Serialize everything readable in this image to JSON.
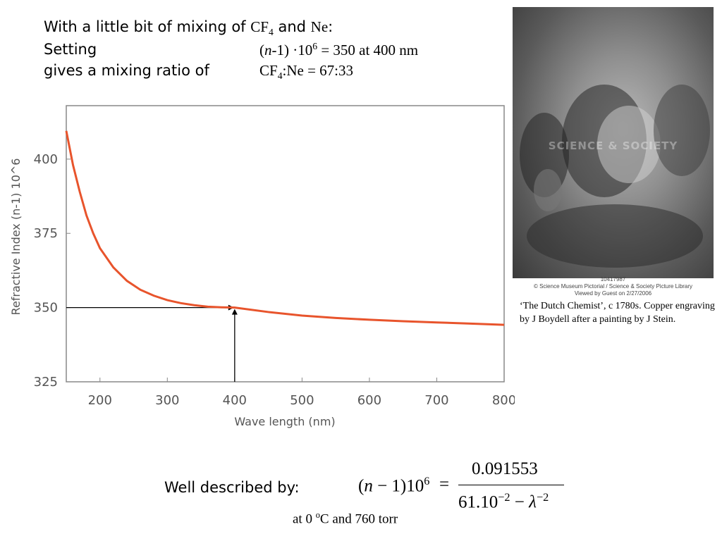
{
  "heading": {
    "line1_prefix": "With a little bit of mixing of",
    "line1_cf": "CF",
    "line1_cf_sub": "4",
    "line1_and": "and",
    "line1_ne": "Ne",
    "line1_colon": ":",
    "line2_left": "Setting",
    "line2_open": "(",
    "line2_n": "n",
    "line2_rest": "-1) ·10",
    "line2_sup": "6",
    "line2_tail": " = 350 at 400 nm",
    "line3_left": "gives a mixing ratio of",
    "line3_cf": "CF",
    "line3_cf_sub": "4",
    "line3_tail": ":Ne = 67:33"
  },
  "chart_data": {
    "type": "line",
    "xlabel": "Wave length (nm)",
    "ylabel": "Refractive Index (n-1) 10^6",
    "xlim": [
      150,
      800
    ],
    "ylim": [
      325,
      418
    ],
    "x_ticks": [
      200,
      300,
      400,
      500,
      600,
      700,
      800
    ],
    "y_ticks": [
      325,
      350,
      375,
      400
    ],
    "grid": false,
    "line_color": "#e8542c",
    "series": [
      {
        "x": [
          150,
          160,
          170,
          180,
          190,
          200,
          220,
          240,
          260,
          280,
          300,
          320,
          340,
          360,
          380,
          400,
          450,
          500,
          550,
          600,
          650,
          700,
          750,
          800
        ],
        "y": [
          409.5,
          398,
          389,
          381,
          375,
          370,
          363.5,
          359,
          356,
          354,
          352.5,
          351.5,
          350.8,
          350.3,
          350.1,
          350,
          348.5,
          347.3,
          346.5,
          345.9,
          345.4,
          345.0,
          344.6,
          344.2
        ]
      }
    ],
    "annotation": {
      "x": 400,
      "y": 350
    }
  },
  "photo": {
    "watermark": "SCIENCE & SOCIETY",
    "credit_line1": "10417987",
    "credit_line2": "© Science Museum Pictorial / Science & Society Picture Library",
    "credit_line3": "Viewed by Guest on 2/27/2006",
    "caption": "‘The Dutch Chemist’, c 1780s. Copper engraving by J Boydell after a painting by J Stein."
  },
  "formula": {
    "label": "Well described by:",
    "lhs_open": "(",
    "lhs_n": "n",
    "lhs_rest": " − 1)10",
    "lhs_sup": "6",
    "equals": "=",
    "numerator": "0.091553",
    "den_a": "61.10",
    "den_a_sup": "−2",
    "den_minus": " − ",
    "den_lambda": "λ",
    "den_lambda_sup": "−2",
    "condition_prefix": "at 0 ",
    "condition_deg": "o",
    "condition_suffix": "C and 760 torr"
  }
}
